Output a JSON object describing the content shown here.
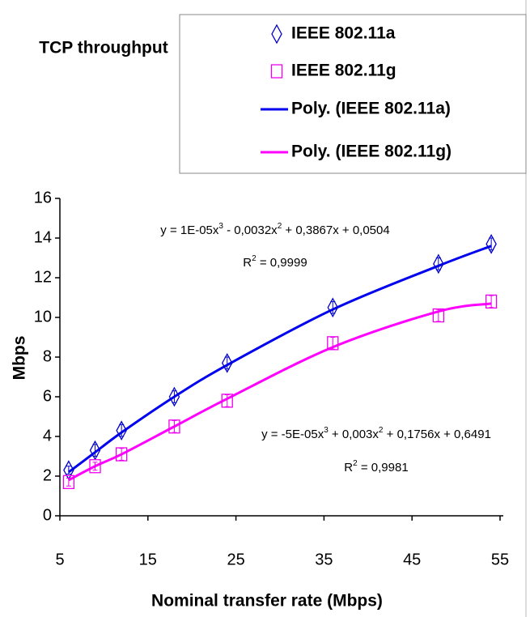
{
  "chart_data": {
    "type": "scatter",
    "title": "TCP throughput",
    "x_label": "Nominal transfer rate (Mbps)",
    "y_label": "Mbps",
    "x": [
      6,
      9,
      12,
      18,
      24,
      36,
      48,
      54
    ],
    "series": [
      {
        "name": "IEEE 802.11a",
        "color": "#0000cc",
        "marker": "diamond",
        "values": [
          2.3,
          3.3,
          4.3,
          6.0,
          7.7,
          10.5,
          12.7,
          13.7
        ],
        "errors": [
          0.2,
          0.3,
          0.3,
          0.3,
          0.3,
          0.3,
          0.3,
          0.3
        ]
      },
      {
        "name": "IEEE 802.11g",
        "color": "#ee00ee",
        "marker": "square",
        "values": [
          1.7,
          2.5,
          3.1,
          4.5,
          5.8,
          8.7,
          10.1,
          10.8
        ],
        "errors": [
          0.2,
          0.2,
          0.3,
          0.3,
          0.3,
          0.3,
          0.3,
          0.3
        ]
      },
      {
        "name": "Poly. (IEEE 802.11a)",
        "color": "#0000ee",
        "values": [
          2.2,
          3.2,
          4.2,
          6.0,
          7.6,
          10.4,
          12.6,
          13.6
        ]
      },
      {
        "name": "Poly. (IEEE 802.11g)",
        "color": "#ff00ff",
        "values": [
          1.8,
          2.5,
          3.1,
          4.5,
          5.9,
          8.5,
          10.3,
          10.7
        ]
      }
    ],
    "annotations": [
      [
        "y = 1E-05x",
        "3",
        " - 0,0032x",
        "2",
        " + 0,3867x + 0,0504"
      ],
      [
        "R",
        "2",
        " = 0,9999"
      ],
      [
        "y = -5E-05x",
        "3",
        " + 0,003x",
        "2",
        " + 0,1756x + 0,6491"
      ],
      [
        "R",
        "2",
        " = 0,9981"
      ]
    ],
    "xlim": [
      5,
      55
    ],
    "xticks": [
      5,
      15,
      25,
      35,
      45,
      55
    ],
    "ylim": [
      0,
      16
    ],
    "yticks": [
      0,
      2,
      4,
      6,
      8,
      10,
      12,
      14,
      16
    ],
    "legend": "top"
  }
}
